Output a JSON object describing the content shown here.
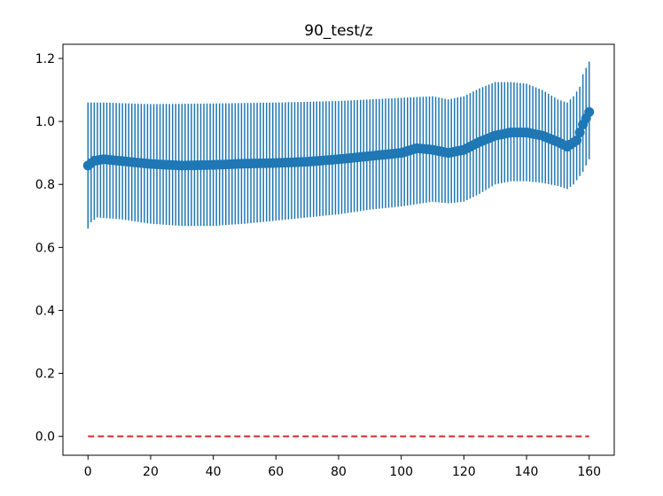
{
  "chart_data": {
    "type": "scatter",
    "title": "90_test/z",
    "xlabel": "",
    "ylabel": "",
    "xlim": [
      -8,
      168
    ],
    "ylim": [
      -0.06,
      1.245
    ],
    "xticks": [
      0,
      20,
      40,
      60,
      80,
      100,
      120,
      140,
      160
    ],
    "xtick_labels": [
      "0",
      "20",
      "40",
      "60",
      "80",
      "100",
      "120",
      "140",
      "160"
    ],
    "yticks": [
      0.0,
      0.2,
      0.4,
      0.6,
      0.8,
      1.0,
      1.2
    ],
    "ytick_labels": [
      "0.0",
      "0.2",
      "0.4",
      "0.6",
      "0.8",
      "1.0",
      "1.2"
    ],
    "grid": false,
    "series": [
      {
        "kind": "errorbar",
        "color": "#1f77b4",
        "mean_anchors": [
          [
            0,
            0.86
          ],
          [
            2,
            0.875
          ],
          [
            5,
            0.88
          ],
          [
            10,
            0.875
          ],
          [
            20,
            0.865
          ],
          [
            30,
            0.86
          ],
          [
            40,
            0.862
          ],
          [
            50,
            0.866
          ],
          [
            60,
            0.868
          ],
          [
            70,
            0.872
          ],
          [
            80,
            0.88
          ],
          [
            90,
            0.89
          ],
          [
            100,
            0.9
          ],
          [
            105,
            0.915
          ],
          [
            110,
            0.91
          ],
          [
            115,
            0.9
          ],
          [
            120,
            0.91
          ],
          [
            125,
            0.935
          ],
          [
            130,
            0.955
          ],
          [
            135,
            0.965
          ],
          [
            140,
            0.965
          ],
          [
            145,
            0.955
          ],
          [
            150,
            0.935
          ],
          [
            153,
            0.92
          ],
          [
            156,
            0.94
          ],
          [
            158,
            0.99
          ],
          [
            160,
            1.03
          ]
        ],
        "upper_anchors": [
          [
            0,
            1.06
          ],
          [
            5,
            1.06
          ],
          [
            20,
            1.055
          ],
          [
            40,
            1.057
          ],
          [
            60,
            1.06
          ],
          [
            80,
            1.065
          ],
          [
            100,
            1.075
          ],
          [
            110,
            1.08
          ],
          [
            115,
            1.07
          ],
          [
            120,
            1.08
          ],
          [
            125,
            1.105
          ],
          [
            130,
            1.125
          ],
          [
            135,
            1.125
          ],
          [
            140,
            1.12
          ],
          [
            145,
            1.1
          ],
          [
            150,
            1.07
          ],
          [
            153,
            1.06
          ],
          [
            155,
            1.08
          ],
          [
            157,
            1.11
          ],
          [
            158,
            1.15
          ],
          [
            160,
            1.19
          ]
        ],
        "lower_anchors": [
          [
            0,
            0.66
          ],
          [
            1,
            0.68
          ],
          [
            3,
            0.695
          ],
          [
            10,
            0.69
          ],
          [
            20,
            0.675
          ],
          [
            30,
            0.668
          ],
          [
            40,
            0.668
          ],
          [
            50,
            0.675
          ],
          [
            60,
            0.685
          ],
          [
            70,
            0.695
          ],
          [
            80,
            0.705
          ],
          [
            90,
            0.72
          ],
          [
            100,
            0.73
          ],
          [
            110,
            0.745
          ],
          [
            115,
            0.74
          ],
          [
            120,
            0.745
          ],
          [
            125,
            0.77
          ],
          [
            130,
            0.8
          ],
          [
            135,
            0.81
          ],
          [
            140,
            0.81
          ],
          [
            145,
            0.805
          ],
          [
            150,
            0.795
          ],
          [
            153,
            0.785
          ],
          [
            155,
            0.8
          ],
          [
            158,
            0.84
          ],
          [
            160,
            0.88
          ]
        ]
      },
      {
        "kind": "line",
        "color": "#d62728",
        "dashed": true,
        "x": [
          0,
          160
        ],
        "y": [
          0.0,
          0.0
        ]
      }
    ]
  }
}
